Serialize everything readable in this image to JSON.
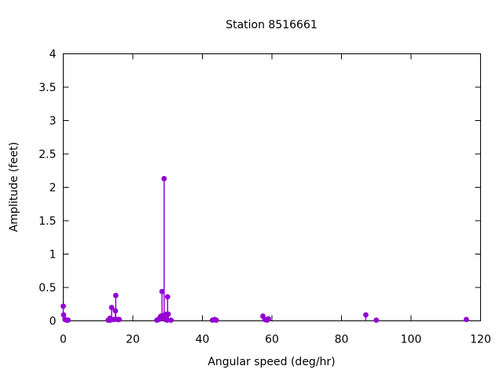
{
  "chart_data": {
    "type": "scatter",
    "style": "impulses-and-points",
    "title": "Station 8516661",
    "xlabel": "Angular speed (deg/hr)",
    "ylabel": "Amplitude (feet)",
    "xlim": [
      0,
      120
    ],
    "ylim": [
      0,
      4
    ],
    "x_ticks": [
      0,
      20,
      40,
      60,
      80,
      100,
      120
    ],
    "y_ticks": [
      0,
      0.5,
      1,
      1.5,
      2,
      2.5,
      3,
      3.5,
      4
    ],
    "grid": false,
    "legend": "none",
    "point_color": "#9400d3",
    "axis_color": "#000000",
    "background_color": "#ffffff",
    "points": [
      [
        0.0,
        0.22
      ],
      [
        0.1,
        0.09
      ],
      [
        0.5,
        0.02
      ],
      [
        1.0,
        0.01
      ],
      [
        1.4,
        0.01
      ],
      [
        12.9,
        0.01
      ],
      [
        13.4,
        0.04
      ],
      [
        13.5,
        0.01
      ],
      [
        13.9,
        0.2
      ],
      [
        14.5,
        0.02
      ],
      [
        15.0,
        0.15
      ],
      [
        15.1,
        0.38
      ],
      [
        15.6,
        0.02
      ],
      [
        16.1,
        0.02
      ],
      [
        26.9,
        0.01
      ],
      [
        27.4,
        0.02
      ],
      [
        27.9,
        0.06
      ],
      [
        28.1,
        0.07
      ],
      [
        28.4,
        0.44
      ],
      [
        28.6,
        0.08
      ],
      [
        29.0,
        2.13
      ],
      [
        29.4,
        0.02
      ],
      [
        29.6,
        0.1
      ],
      [
        29.9,
        0.01
      ],
      [
        30.0,
        0.36
      ],
      [
        30.2,
        0.1
      ],
      [
        31.0,
        0.01
      ],
      [
        42.9,
        0.01
      ],
      [
        43.5,
        0.02
      ],
      [
        44.0,
        0.01
      ],
      [
        57.4,
        0.07
      ],
      [
        58.0,
        0.02
      ],
      [
        58.6,
        0.01
      ],
      [
        59.0,
        0.03
      ],
      [
        87.0,
        0.09
      ],
      [
        90.0,
        0.01
      ],
      [
        115.9,
        0.02
      ]
    ]
  }
}
